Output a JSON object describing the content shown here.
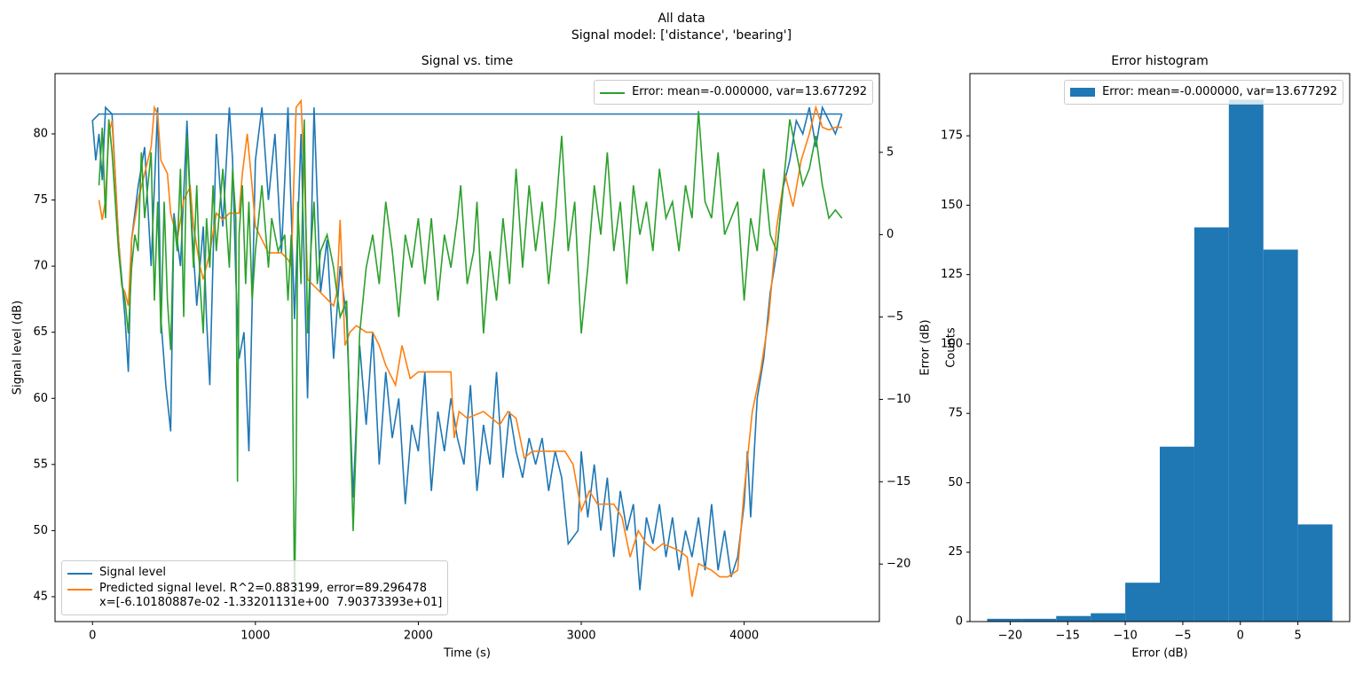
{
  "figure": {
    "title": "All data",
    "subtitle": "Signal model: ['distance', 'bearing']"
  },
  "chart_data": [
    {
      "type": "line",
      "title": "Signal vs. time",
      "xlabel": "Time (s)",
      "ylabel": "Signal level (dB)",
      "y2label": "Error (dB)",
      "xlim": [
        -230,
        4830
      ],
      "ylim": [
        43.12,
        84.56
      ],
      "y2lim": [
        -23.49,
        9.78
      ],
      "xticks": [
        0,
        1000,
        2000,
        3000,
        4000
      ],
      "yticks": [
        45,
        50,
        55,
        60,
        65,
        70,
        75,
        80
      ],
      "y2ticks": [
        {
          "value": -20,
          "label": "−20"
        },
        {
          "value": -15,
          "label": "−15"
        },
        {
          "value": -10,
          "label": "−10"
        },
        {
          "value": -5,
          "label": "−5"
        },
        0,
        5
      ],
      "legend_loc": "lower left",
      "legend2_loc": "upper right",
      "series": [
        {
          "name": "Signal level",
          "color": "#1f77b4",
          "axis": "y",
          "x": [
            4600,
            40,
            0,
            20,
            40,
            60,
            80,
            120,
            160,
            200,
            220,
            240,
            280,
            320,
            360,
            400,
            420,
            450,
            480,
            500,
            540,
            580,
            600,
            640,
            680,
            700,
            720,
            760,
            800,
            840,
            860,
            880,
            900,
            930,
            960,
            1000,
            1040,
            1080,
            1120,
            1160,
            1200,
            1240,
            1280,
            1320,
            1360,
            1400,
            1440,
            1480,
            1520,
            1560,
            1600,
            1640,
            1680,
            1720,
            1760,
            1800,
            1840,
            1880,
            1920,
            1960,
            2000,
            2040,
            2080,
            2120,
            2160,
            2200,
            2240,
            2280,
            2320,
            2360,
            2400,
            2440,
            2480,
            2520,
            2560,
            2600,
            2640,
            2680,
            2720,
            2760,
            2800,
            2840,
            2880,
            2920,
            2980,
            3000,
            3040,
            3080,
            3120,
            3160,
            3200,
            3240,
            3280,
            3320,
            3360,
            3400,
            3440,
            3480,
            3520,
            3560,
            3600,
            3640,
            3680,
            3720,
            3760,
            3800,
            3840,
            3880,
            3920,
            3960,
            4000,
            4020,
            4040,
            4080,
            4120,
            4160,
            4200,
            4240,
            4280,
            4320,
            4360,
            4400,
            4440,
            4480,
            4520,
            4560,
            4600
          ],
          "values": [
            81.5,
            81.5,
            81,
            78,
            80,
            76.5,
            82,
            81.5,
            72,
            66,
            62,
            72,
            76,
            79,
            70,
            82,
            66,
            61,
            57.5,
            74,
            70,
            81,
            75,
            67,
            73,
            66,
            61,
            80,
            73,
            82,
            78,
            69,
            63,
            65,
            56,
            78,
            82,
            75,
            80,
            71,
            82,
            66,
            80,
            60,
            82,
            68,
            72,
            63,
            70,
            66,
            52.5,
            64,
            58,
            65,
            55,
            62,
            57,
            60,
            52,
            58,
            56,
            62,
            53,
            59,
            56,
            60,
            57,
            55,
            61,
            53,
            58,
            55,
            62,
            54,
            59,
            56,
            54,
            57,
            55,
            57,
            53,
            56,
            54,
            49,
            50,
            56,
            51,
            55,
            50,
            54,
            48,
            53,
            50,
            52,
            45.5,
            51,
            49,
            52,
            48,
            51,
            47,
            50,
            48,
            51,
            47,
            52,
            47,
            50,
            46.5,
            48,
            52,
            56,
            51,
            60,
            63,
            68,
            71,
            76,
            78,
            81,
            80,
            82,
            79,
            82,
            81,
            80,
            81.5
          ]
        },
        {
          "name": "Predicted signal level. R^2=0.883199, error=89.296478\nx=[-6.10180887e-02 -1.33201131e+00  7.90373393e+01]",
          "color": "#ff7f0e",
          "axis": "y",
          "x": [
            40,
            60,
            80,
            100,
            120,
            160,
            180,
            200,
            220,
            240,
            280,
            320,
            360,
            380,
            400,
            420,
            460,
            480,
            520,
            560,
            600,
            620,
            660,
            680,
            720,
            760,
            800,
            840,
            880,
            900,
            920,
            950,
            980,
            1000,
            1040,
            1080,
            1120,
            1160,
            1200,
            1220,
            1250,
            1280,
            1300,
            1320,
            1360,
            1400,
            1440,
            1480,
            1500,
            1520,
            1550,
            1580,
            1620,
            1680,
            1720,
            1760,
            1800,
            1860,
            1900,
            1950,
            2000,
            2100,
            2200,
            2220,
            2250,
            2300,
            2400,
            2500,
            2550,
            2600,
            2650,
            2700,
            2800,
            2900,
            2950,
            3000,
            3050,
            3100,
            3200,
            3250,
            3300,
            3350,
            3400,
            3450,
            3500,
            3600,
            3650,
            3680,
            3720,
            3800,
            3850,
            3900,
            3960,
            4000,
            4050,
            4100,
            4150,
            4200,
            4250,
            4300,
            4350,
            4400,
            4440,
            4480,
            4520,
            4560,
            4600
          ],
          "values": [
            75,
            73.5,
            75,
            80,
            81,
            72,
            68.5,
            68,
            67,
            72,
            75,
            77,
            79,
            82,
            81.5,
            78,
            77,
            74,
            72,
            75,
            76,
            73,
            70,
            69,
            71,
            74,
            73.5,
            74,
            74,
            74,
            77,
            80,
            76,
            73,
            72,
            71,
            71,
            71,
            70.5,
            70,
            82,
            82.5,
            77,
            69,
            68.5,
            68,
            67.5,
            67,
            68,
            73.5,
            64,
            65,
            65.5,
            65,
            65,
            64,
            62.5,
            61,
            64,
            61.5,
            62,
            62,
            62,
            57,
            59,
            58.5,
            59,
            58,
            59,
            58.5,
            55.5,
            56,
            56,
            56,
            55,
            51.5,
            53,
            52,
            52,
            51,
            48,
            50,
            49,
            48.5,
            49,
            48.5,
            48,
            45,
            47.5,
            47,
            46.5,
            46.5,
            47,
            53,
            59,
            62,
            66,
            73,
            77,
            74.5,
            78,
            80,
            82,
            80.5,
            80.3,
            80.5,
            80.5
          ]
        },
        {
          "name": "Error: mean=-0.000000, var=13.677292",
          "color": "#2ca02c",
          "axis": "y2",
          "x": [
            40,
            60,
            80,
            100,
            120,
            140,
            160,
            180,
            200,
            220,
            240,
            260,
            280,
            300,
            320,
            340,
            360,
            380,
            400,
            420,
            440,
            460,
            480,
            500,
            520,
            540,
            560,
            580,
            600,
            620,
            640,
            660,
            680,
            700,
            720,
            740,
            760,
            800,
            840,
            860,
            880,
            890,
            900,
            920,
            940,
            960,
            980,
            1000,
            1040,
            1080,
            1100,
            1140,
            1180,
            1200,
            1220,
            1240,
            1250,
            1260,
            1280,
            1300,
            1320,
            1340,
            1360,
            1380,
            1400,
            1440,
            1480,
            1520,
            1560,
            1600,
            1640,
            1680,
            1720,
            1760,
            1800,
            1840,
            1880,
            1920,
            1960,
            2000,
            2040,
            2080,
            2120,
            2160,
            2200,
            2240,
            2260,
            2300,
            2340,
            2360,
            2400,
            2440,
            2480,
            2520,
            2560,
            2600,
            2640,
            2680,
            2720,
            2760,
            2800,
            2840,
            2880,
            2920,
            2960,
            3000,
            3040,
            3080,
            3120,
            3160,
            3200,
            3240,
            3280,
            3320,
            3360,
            3400,
            3440,
            3480,
            3520,
            3560,
            3600,
            3640,
            3680,
            3720,
            3760,
            3800,
            3840,
            3880,
            3920,
            3960,
            4000,
            4040,
            4080,
            4120,
            4160,
            4200,
            4240,
            4280,
            4320,
            4360,
            4400,
            4440,
            4480,
            4520,
            4560,
            4600
          ],
          "values": [
            3,
            6.5,
            1,
            7,
            5,
            2,
            -1,
            -3,
            -4,
            -6,
            -2,
            0,
            -1,
            5,
            1,
            3,
            5,
            -4,
            2,
            -6,
            2,
            -4,
            -7,
            1,
            -1,
            4,
            -5,
            6,
            2,
            -2,
            3,
            -3,
            -6,
            1,
            -2,
            3,
            -1,
            4,
            -2,
            4,
            1,
            -15,
            0,
            3,
            -3,
            2,
            -4,
            -1,
            3,
            -2,
            1,
            -1,
            0,
            -4,
            0,
            -22,
            -15,
            2,
            -3,
            7,
            -6,
            -1,
            2,
            -3,
            -1,
            0,
            -2,
            -5,
            -4,
            -18,
            -6,
            -2,
            0,
            -3,
            2,
            -1,
            -5,
            0,
            -2,
            1,
            -3,
            1,
            -4,
            0,
            -2,
            1,
            3,
            -3,
            -1,
            2,
            -6,
            -1,
            -4,
            1,
            -3,
            4,
            -2,
            3,
            -1,
            2,
            -3,
            1,
            6,
            -1,
            2,
            -6,
            -2,
            3,
            0,
            5,
            -1,
            2,
            -3,
            3,
            0,
            2,
            -1,
            4,
            1,
            2,
            -1,
            3,
            1,
            7.5,
            2,
            1,
            5,
            0,
            1,
            2,
            -4,
            1,
            -1,
            4,
            0,
            -1,
            3,
            7,
            5,
            3,
            4,
            6,
            3,
            1,
            1.5,
            1
          ]
        }
      ]
    },
    {
      "type": "histogram",
      "title": "Error histogram",
      "xlabel": "Error (dB)",
      "ylabel": "Counts",
      "xlim": [
        -23.5,
        9.5
      ],
      "ylim": [
        0,
        197.4
      ],
      "xticks": [
        {
          "value": -20,
          "label": "−20"
        },
        {
          "value": -15,
          "label": "−15"
        },
        {
          "value": -10,
          "label": "−10"
        },
        {
          "value": -5,
          "label": "−5"
        },
        0,
        5
      ],
      "yticks": [
        0,
        25,
        50,
        75,
        100,
        125,
        150,
        175
      ],
      "legend_loc": "upper right",
      "bins": [
        -22,
        -19,
        -16,
        -13,
        -10,
        -7,
        -4,
        -1,
        2,
        5,
        8
      ],
      "series": [
        {
          "name": "Error: mean=-0.000000, var=13.677292",
          "color": "#1f77b4",
          "values": [
            1,
            1,
            2,
            3,
            14,
            63,
            142,
            188,
            134,
            35
          ]
        }
      ]
    }
  ]
}
